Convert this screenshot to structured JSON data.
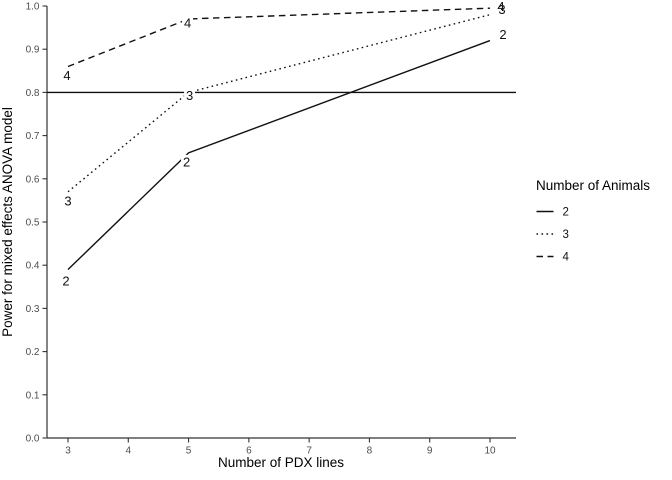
{
  "chart_data": {
    "type": "line",
    "title": "",
    "xlabel": "Number of PDX lines",
    "ylabel": "Power for mixed effects ANOVA model",
    "xlim": [
      3,
      10
    ],
    "ylim": [
      0.0,
      1.0
    ],
    "grid": false,
    "x_ticks": {
      "values": [
        3,
        4,
        5,
        6,
        7,
        8,
        9,
        10
      ],
      "labels": [
        "3",
        "4",
        "5",
        "6",
        "7",
        "8",
        "9",
        "10"
      ]
    },
    "y_ticks": {
      "values": [
        0.0,
        0.1,
        0.2,
        0.3,
        0.4,
        0.5,
        0.6,
        0.7,
        0.8,
        0.9,
        1.0
      ],
      "labels": [
        "0.0",
        "0.1",
        "0.2",
        "0.3",
        "0.4",
        "0.5",
        "0.6",
        "0.7",
        "0.8",
        "0.9",
        "1.0"
      ]
    },
    "reference_line": {
      "y": 0.8,
      "linetype": "solid"
    },
    "series": [
      {
        "name": "2",
        "linetype": "solid",
        "x": [
          3,
          5,
          10
        ],
        "y": [
          0.39,
          0.66,
          0.92
        ],
        "label_offsets": [
          [
            -2,
            11.5
          ],
          [
            -2,
            9
          ],
          [
            13,
            -6
          ]
        ]
      },
      {
        "name": "3",
        "linetype": "dotted",
        "x": [
          3,
          5,
          10
        ],
        "y": [
          0.57,
          0.8,
          0.98
        ],
        "label_offsets": [
          [
            0,
            9
          ],
          [
            1,
            3
          ],
          [
            12,
            -5
          ]
        ]
      },
      {
        "name": "4",
        "linetype": "dashed",
        "x": [
          3,
          5,
          10
        ],
        "y": [
          0.86,
          0.97,
          0.995
        ],
        "label_offsets": [
          [
            -1,
            9
          ],
          [
            -1,
            4
          ],
          [
            11,
            -1.5
          ]
        ]
      }
    ],
    "legend": {
      "title": "Number of Animals",
      "position": "right",
      "entries": [
        {
          "label": "2",
          "linetype": "solid"
        },
        {
          "label": "3",
          "linetype": "dotted"
        },
        {
          "label": "4",
          "linetype": "dashed"
        }
      ]
    },
    "colors": {
      "background": "#ffffff",
      "line": "#111111",
      "axis": "#333333",
      "tick_label": "#4d4d4d",
      "text": "#000000"
    }
  }
}
